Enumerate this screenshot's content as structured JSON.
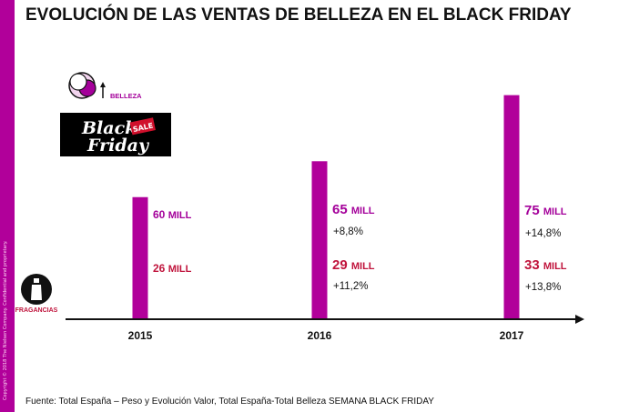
{
  "title": "EVOLUCIÓN DE LAS VENTAS DE BELLEZA EN EL BLACK FRIDAY",
  "sidebar_text": "Copyright © 2018 The Nielsen Company. Confidential and proprietary.",
  "source": "Fuente: Total España – Peso y Evolución Valor, Total España-Total Belleza  SEMANA BLACK FRIDAY",
  "logo": {
    "line1": "Black",
    "line2": "Friday",
    "tag": "SALE"
  },
  "colors": {
    "bar": "#b1009a",
    "belleza": "#a4009a",
    "fragancias": "#c0143c",
    "axis": "#111111"
  },
  "chart_data": {
    "type": "bar",
    "categories": [
      "2015",
      "2016",
      "2017"
    ],
    "series": [
      {
        "name": "BELLEZA",
        "values": [
          60,
          65,
          75
        ],
        "value_labels": [
          {
            "num": "60",
            "unit": "MILL"
          },
          {
            "num": "65",
            "unit": "MILL"
          },
          {
            "num": "75",
            "unit": "MILL"
          }
        ],
        "growth": [
          "",
          "+8,8%",
          "+14,8%"
        ]
      },
      {
        "name": "FRAGANCIAS",
        "values": [
          26,
          29,
          33
        ],
        "value_labels": [
          {
            "num": "26",
            "unit": "MILL"
          },
          {
            "num": "29",
            "unit": "MILL"
          },
          {
            "num": "33",
            "unit": "MILL"
          }
        ],
        "growth": [
          "",
          "+11,2%",
          "+13,8%"
        ]
      }
    ],
    "legend": [
      "BELLEZA",
      "FRAGANCIAS"
    ]
  }
}
